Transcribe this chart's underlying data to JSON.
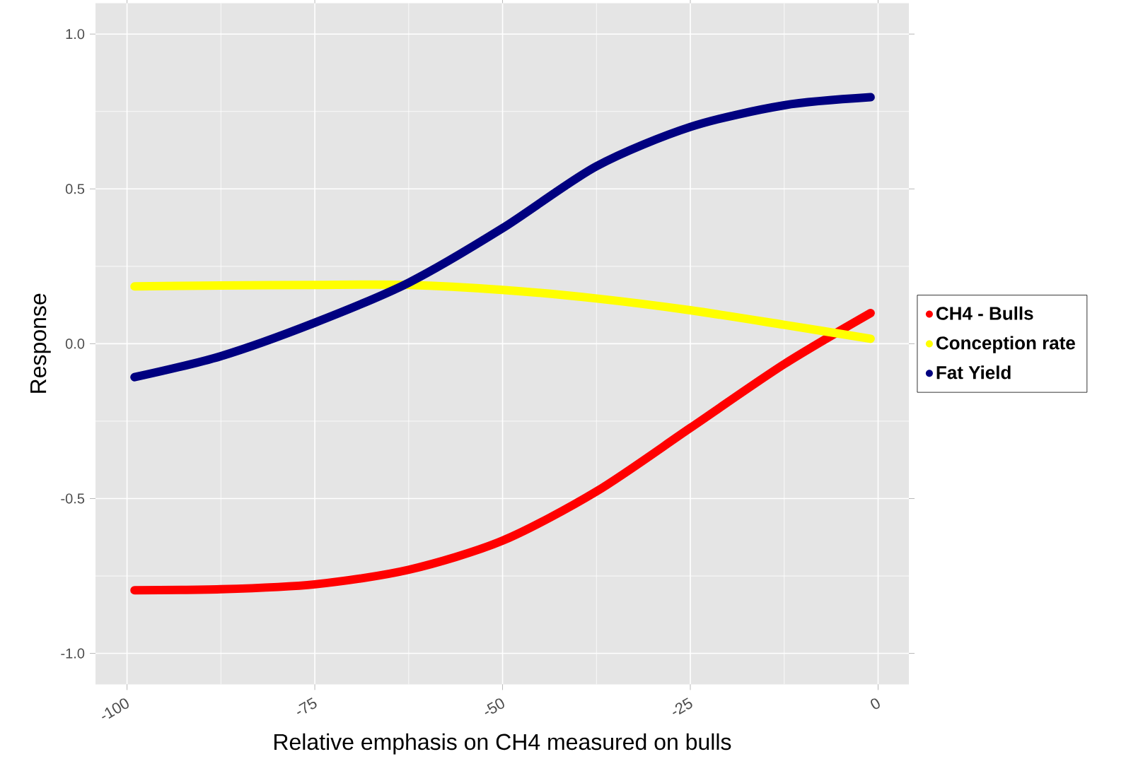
{
  "chart_data": {
    "type": "line",
    "xlabel": "Relative emphasis on CH4 measured on bulls",
    "ylabel": "Response",
    "x": [
      -99,
      -87.5,
      -75,
      -62.5,
      -50,
      -37.5,
      -25,
      -12.5,
      -1
    ],
    "series": [
      {
        "name": "CH4 - Bulls",
        "color": "#ff0000",
        "values": [
          -0.796,
          -0.793,
          -0.777,
          -0.73,
          -0.636,
          -0.477,
          -0.272,
          -0.066,
          0.099
        ]
      },
      {
        "name": "Conception rate",
        "color": "#ffff00",
        "values": [
          0.185,
          0.188,
          0.19,
          0.19,
          0.174,
          0.146,
          0.108,
          0.061,
          0.016
        ]
      },
      {
        "name": "Fat Yield",
        "color": "#000080",
        "values": [
          -0.108,
          -0.04,
          0.068,
          0.197,
          0.373,
          0.573,
          0.7,
          0.77,
          0.796
        ]
      }
    ],
    "xlim": [
      -104.2,
      4.1
    ],
    "ylim": [
      -1.1,
      1.1
    ],
    "xticks": [
      -100,
      -75,
      -50,
      -25,
      0
    ],
    "yticks": [
      {
        "value": -1.0,
        "label": "-1.0"
      },
      {
        "value": -0.5,
        "label": "-0.5"
      },
      {
        "value": 0.0,
        "label": "0.0"
      },
      {
        "value": 0.5,
        "label": "0.5"
      },
      {
        "value": 1.0,
        "label": "1.0"
      }
    ],
    "grid": true,
    "legend": "right",
    "marker": "none",
    "line_style": "solid"
  }
}
